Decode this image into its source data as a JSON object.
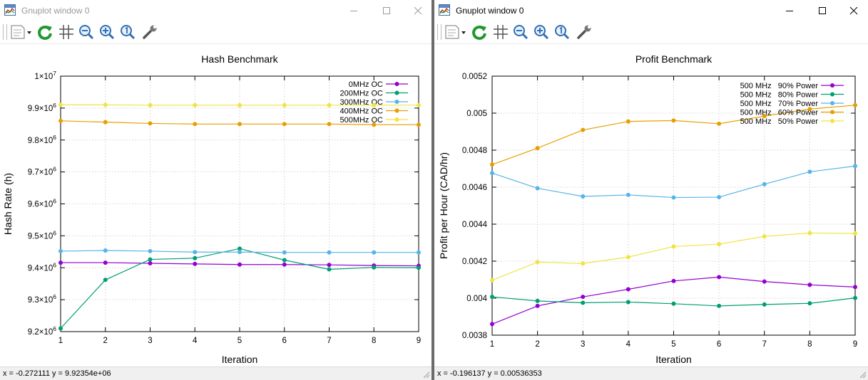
{
  "colors": {
    "s1": "#9400d3",
    "s2": "#009e73",
    "s3": "#56b4e9",
    "s4": "#e69f00",
    "s5": "#f0e442",
    "grid": "#c8c8c8",
    "axis": "#000000"
  },
  "icons": [
    "app-icon",
    "minimize-icon",
    "maximize-icon",
    "close-icon",
    "copy-clipboard-icon",
    "replot-icon",
    "grid-icon",
    "zoom-out-icon",
    "zoom-in-icon",
    "unzoom-icon",
    "options-wrench-icon",
    "resize-grip-icon"
  ],
  "windows": [
    {
      "title": "Gnuplot window 0",
      "status": "x = -0.272111 y = 9.92354e+06"
    },
    {
      "title": "Gnuplot window 0",
      "status": "x = -0.196137 y = 0.00536353"
    }
  ],
  "chart_data": [
    {
      "type": "line",
      "title": "Hash Benchmark",
      "xlabel": "Iteration",
      "ylabel": "Hash Rate (h)",
      "xlim": [
        1,
        9
      ],
      "ylim": [
        9200000,
        10000000
      ],
      "grid": true,
      "legend": "top-right",
      "x_ticks": [
        "1",
        "2",
        "3",
        "4",
        "5",
        "6",
        "7",
        "8",
        "9"
      ],
      "y_ticks": [
        {
          "value": 9200000,
          "m": "9.2",
          "e": "6"
        },
        {
          "value": 9300000,
          "m": "9.3",
          "e": "6"
        },
        {
          "value": 9400000,
          "m": "9.4",
          "e": "6"
        },
        {
          "value": 9500000,
          "m": "9.5",
          "e": "6"
        },
        {
          "value": 9600000,
          "m": "9.6",
          "e": "6"
        },
        {
          "value": 9700000,
          "m": "9.7",
          "e": "6"
        },
        {
          "value": 9800000,
          "m": "9.8",
          "e": "6"
        },
        {
          "value": 9900000,
          "m": "9.9",
          "e": "6"
        },
        {
          "value": 10000000,
          "m": "1",
          "e": "7"
        }
      ],
      "x": [
        1,
        2,
        3,
        4,
        5,
        6,
        7,
        8,
        9
      ],
      "series": [
        {
          "name": "0MHz OC",
          "color": "#9400d3",
          "values": [
            9416000,
            9416000,
            9414000,
            9412000,
            9410000,
            9410000,
            9409000,
            9407000,
            9406000
          ]
        },
        {
          "name": "200MHz OC",
          "color": "#009e73",
          "values": [
            9210000,
            9362000,
            9426000,
            9430000,
            9460000,
            9424000,
            9395000,
            9401000,
            9400000
          ]
        },
        {
          "name": "300MHz OC",
          "color": "#56b4e9",
          "values": [
            9452000,
            9454000,
            9452000,
            9449000,
            9449000,
            9448000,
            9448000,
            9448000,
            9448000
          ]
        },
        {
          "name": "400MHz OC",
          "color": "#e69f00",
          "values": [
            9860000,
            9856000,
            9852000,
            9850000,
            9850000,
            9850000,
            9850000,
            9848000,
            9848000
          ]
        },
        {
          "name": "500MHz OC",
          "color": "#f0e442",
          "values": [
            9910000,
            9910000,
            9909000,
            9909000,
            9909000,
            9909000,
            9909000,
            9909000,
            9909000
          ]
        }
      ]
    },
    {
      "type": "line",
      "title": "Profit Benchmark",
      "xlabel": "Iteration",
      "ylabel": "Profit per Hour (CAD/hr)",
      "xlim": [
        1,
        9
      ],
      "ylim": [
        0.0038,
        0.0052
      ],
      "grid": true,
      "legend": "top-right",
      "x_ticks": [
        "1",
        "2",
        "3",
        "4",
        "5",
        "6",
        "7",
        "8",
        "9"
      ],
      "y_ticks": [
        {
          "value": 0.0038,
          "label": "0.0038"
        },
        {
          "value": 0.004,
          "label": "0.004"
        },
        {
          "value": 0.0042,
          "label": "0.0042"
        },
        {
          "value": 0.0044,
          "label": "0.0044"
        },
        {
          "value": 0.0046,
          "label": "0.0046"
        },
        {
          "value": 0.0048,
          "label": "0.0048"
        },
        {
          "value": 0.005,
          "label": "0.005"
        },
        {
          "value": 0.0052,
          "label": "0.0052"
        }
      ],
      "x": [
        1,
        2,
        3,
        4,
        5,
        6,
        7,
        8,
        9
      ],
      "series": [
        {
          "name": "500 MHz   90% Power",
          "color": "#9400d3",
          "values": [
            0.00386,
            0.003958,
            0.004007,
            0.004048,
            0.004093,
            0.004114,
            0.00409,
            0.004072,
            0.00406
          ]
        },
        {
          "name": "500 MHz   80% Power",
          "color": "#009e73",
          "values": [
            0.004007,
            0.003985,
            0.003975,
            0.003979,
            0.00397,
            0.003958,
            0.003966,
            0.003972,
            0.004001
          ]
        },
        {
          "name": "500 MHz   70% Power",
          "color": "#56b4e9",
          "values": [
            0.004676,
            0.004594,
            0.00455,
            0.004558,
            0.004544,
            0.004546,
            0.004616,
            0.004683,
            0.004714
          ]
        },
        {
          "name": "500 MHz   60% Power",
          "color": "#e69f00",
          "values": [
            0.004722,
            0.004811,
            0.004909,
            0.004955,
            0.00496,
            0.004943,
            0.004984,
            0.005022,
            0.005043
          ]
        },
        {
          "name": "500 MHz   50% Power",
          "color": "#f0e442",
          "values": [
            0.004097,
            0.004195,
            0.004187,
            0.004222,
            0.004279,
            0.004292,
            0.004334,
            0.004352,
            0.00435
          ]
        }
      ]
    }
  ]
}
